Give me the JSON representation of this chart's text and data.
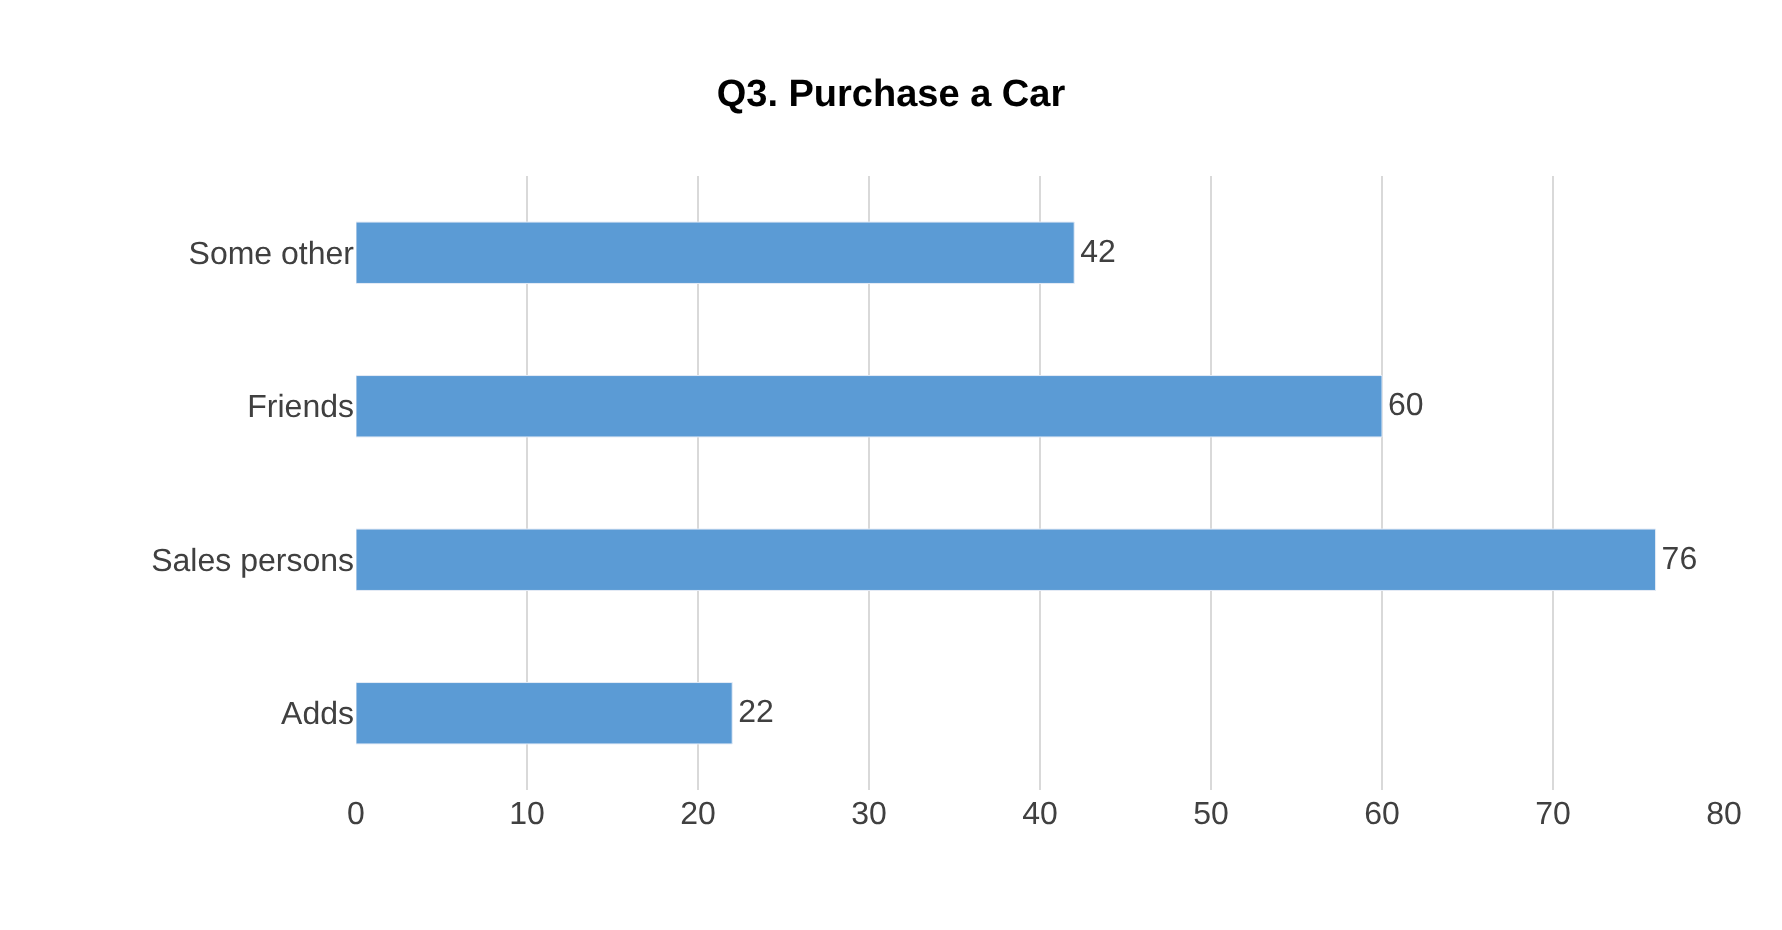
{
  "chart_data": {
    "type": "bar",
    "orientation": "horizontal",
    "title": "Q3. Purchase a Car",
    "categories": [
      "Some other",
      "Friends",
      "Sales persons",
      "Adds"
    ],
    "values": [
      42,
      60,
      76,
      22
    ],
    "color": "#5b9bd5",
    "xlim": [
      0,
      80
    ],
    "xticks": [
      0,
      10,
      20,
      30,
      40,
      50,
      60,
      70,
      80
    ],
    "grid": "x",
    "data_labels": true
  }
}
